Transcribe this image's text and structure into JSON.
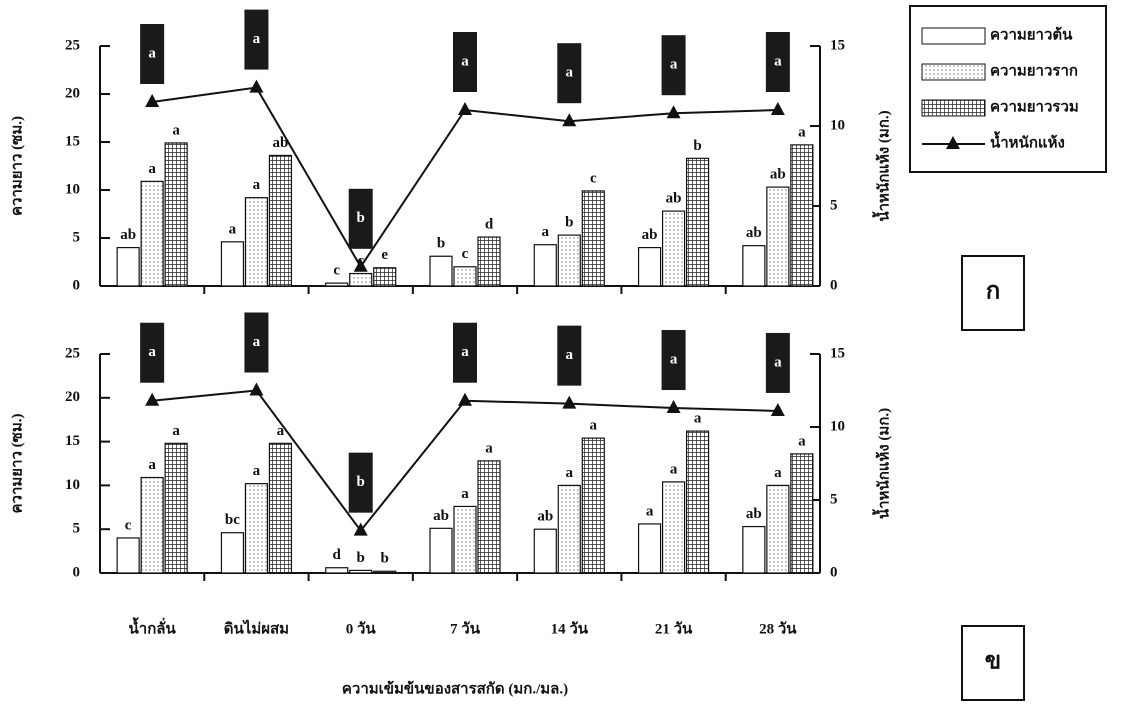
{
  "chart_data": [
    {
      "type": "bar",
      "panel_label": "ก",
      "y_label": "ความยาว (ซม.)",
      "y2_label": "น้ำหนักแห้ง (มก.)",
      "categories": [
        null,
        null,
        null,
        null,
        null,
        null,
        null
      ],
      "ylim": [
        0,
        25
      ],
      "yticks": [
        0,
        5,
        10,
        15,
        20,
        25
      ],
      "y2lim": [
        0,
        15
      ],
      "y2ticks": [
        0,
        5,
        10,
        15
      ],
      "legend": "top-right",
      "series": [
        {
          "name": "ความยาวต้น",
          "color": "#ffffff",
          "pattern": "none",
          "values": [
            4.0,
            4.6,
            0.3,
            3.1,
            4.3,
            4.0,
            4.2
          ],
          "letters": [
            "ab",
            "a",
            "c",
            "b",
            "a",
            "ab",
            "ab"
          ]
        },
        {
          "name": "ความยาวราก",
          "color": "#ffffff",
          "pattern": "dots",
          "values": [
            10.9,
            9.2,
            1.3,
            2.0,
            5.3,
            7.8,
            10.3
          ],
          "letters": [
            "a",
            "a",
            "c",
            "c",
            "b",
            "ab",
            "ab"
          ]
        },
        {
          "name": "ความยาวรวม",
          "color": "#ffffff",
          "pattern": "grid",
          "values": [
            14.9,
            13.6,
            1.9,
            5.1,
            9.9,
            13.3,
            14.7
          ],
          "letters": [
            "a",
            "ab",
            "e",
            "d",
            "c",
            "b",
            "a"
          ]
        },
        {
          "name": "น้ำหนักแห้ง",
          "color": "#111111",
          "type": "line",
          "axis": "y2",
          "values": [
            11.5,
            12.4,
            1.2,
            11.0,
            10.3,
            10.8,
            11.0
          ],
          "letters": [
            "a",
            "a",
            "b",
            "a",
            "a",
            "a",
            "a"
          ]
        }
      ]
    },
    {
      "type": "bar",
      "panel_label": "ข",
      "y_label": "ความยาว (ซม.)",
      "y2_label": "น้ำหนักแห้ง (มก.)",
      "x_label": "ความเข้มข้นของสารสกัด (มก./มล.)",
      "categories": [
        "น้ำกลั่น",
        "ดินไม่ผสม",
        "0 วัน",
        "7 วัน",
        "14 วัน",
        "21 วัน",
        "28 วัน"
      ],
      "ylim": [
        0,
        25
      ],
      "yticks": [
        0,
        5,
        10,
        15,
        20,
        25
      ],
      "y2lim": [
        0,
        15
      ],
      "y2ticks": [
        0,
        5,
        10,
        15
      ],
      "series": [
        {
          "color": "#ffffff",
          "pattern": "none",
          "values": [
            4.0,
            4.6,
            0.6,
            5.1,
            5.0,
            5.6,
            5.3
          ],
          "letters": [
            "c",
            "bc",
            "d",
            "ab",
            "ab",
            "a",
            "ab"
          ]
        },
        {
          "color": "#ffffff",
          "pattern": "dots",
          "values": [
            10.9,
            10.2,
            0.3,
            7.6,
            10.0,
            10.4,
            10.0
          ],
          "letters": [
            "a",
            "a",
            "b",
            "a",
            "a",
            "a",
            "a"
          ]
        },
        {
          "color": "#ffffff",
          "pattern": "grid",
          "values": [
            14.8,
            14.8,
            0.2,
            12.8,
            15.4,
            16.2,
            13.6
          ],
          "letters": [
            "a",
            "a",
            "b",
            "a",
            "a",
            "a",
            "a"
          ]
        },
        {
          "color": "#111111",
          "type": "line",
          "axis": "y2",
          "values": [
            11.8,
            12.5,
            2.9,
            11.8,
            11.6,
            11.3,
            11.1
          ],
          "letters": [
            "a",
            "a",
            "b",
            "a",
            "a",
            "a",
            "a"
          ]
        }
      ]
    }
  ]
}
